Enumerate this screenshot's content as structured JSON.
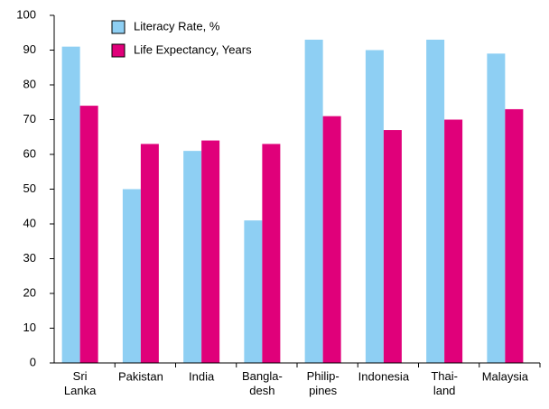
{
  "chart_data": {
    "type": "bar",
    "categories": [
      "Sri\nLanka",
      "Pakistan",
      "India",
      "Bangla-\ndesh",
      "Philip-\npines",
      "Indonesia",
      "Thai-\nland",
      "Malaysia"
    ],
    "series": [
      {
        "name": "Literacy Rate, %",
        "color": "#8ecff3",
        "values": [
          91,
          50,
          61,
          41,
          93,
          90,
          93,
          89
        ]
      },
      {
        "name": "Life Expectancy, Years",
        "color": "#e0007a",
        "values": [
          74,
          63,
          64,
          63,
          71,
          67,
          70,
          73
        ]
      }
    ],
    "ylim": [
      0,
      100
    ],
    "yticks": [
      0,
      10,
      20,
      30,
      40,
      50,
      60,
      70,
      80,
      90,
      100
    ],
    "grid": false,
    "legend": "upper left"
  }
}
